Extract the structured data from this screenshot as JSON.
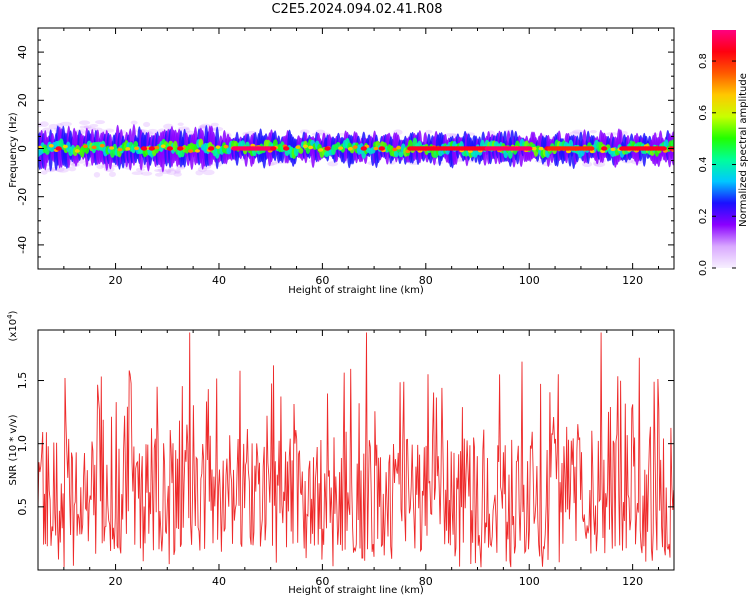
{
  "figure_title": "C2E5.2024.094.02.41.R08",
  "colors": {
    "snr_line": "#ee2a2a",
    "colormap": [
      "#f7f0ff",
      "#d9a8ff",
      "#8a00ff",
      "#1a10ff",
      "#00c8ff",
      "#00ff9a",
      "#22ff00",
      "#c8ff00",
      "#ffc800",
      "#ff5a00",
      "#ff0010",
      "#ff0080"
    ]
  },
  "chart_data": [
    {
      "type": "heatmap",
      "name": "spectrogram",
      "xlabel": "Height of straight line (km)",
      "ylabel": "Frequency (Hz)",
      "xlim": [
        5,
        128
      ],
      "ylim": [
        -50,
        50
      ],
      "x_ticks": [
        20,
        40,
        60,
        80,
        100,
        120
      ],
      "y_ticks": [
        -40,
        -20,
        0,
        20,
        40
      ],
      "colorbar": {
        "label": "Normalized spectral amplitude",
        "range": [
          0,
          0.92
        ],
        "ticks": [
          "0.0",
          "0.2",
          "0.4",
          "0.6",
          "0.8"
        ]
      },
      "band": {
        "center_hz": 0,
        "core_halfwidth_hz": 2,
        "full_halfwidth_hz": 6
      },
      "peak_segments": [
        {
          "x": [
            43,
            50
          ],
          "amplitude": 0.9
        },
        {
          "x": [
            77,
            92
          ],
          "amplitude": 0.85
        },
        {
          "x": [
            92,
            100
          ],
          "amplitude": 0.9
        },
        {
          "x": [
            104,
            112
          ],
          "amplitude": 0.8
        },
        {
          "x": [
            118,
            126
          ],
          "amplitude": 0.85
        }
      ]
    },
    {
      "type": "line",
      "name": "snr",
      "xlabel": "Height of straight line (km)",
      "ylabel": "SNR (10 * v/v)",
      "y_multiplier": "(x10^4)",
      "xlim": [
        5,
        128
      ],
      "ylim": [
        0,
        1.9
      ],
      "x_ticks": [
        20,
        40,
        60,
        80,
        100,
        120
      ],
      "y_ticks": [
        "0.5",
        "1.0",
        "1.5"
      ],
      "peaks": [
        {
          "x": 10.2,
          "y": 1.52
        },
        {
          "x": 34.3,
          "y": 1.88
        },
        {
          "x": 50.6,
          "y": 1.62
        },
        {
          "x": 68.5,
          "y": 1.88
        },
        {
          "x": 80.4,
          "y": 1.55
        },
        {
          "x": 98.6,
          "y": 1.65
        },
        {
          "x": 105.7,
          "y": 1.55
        },
        {
          "x": 113.9,
          "y": 1.88
        },
        {
          "x": 121.3,
          "y": 1.68
        }
      ]
    }
  ]
}
